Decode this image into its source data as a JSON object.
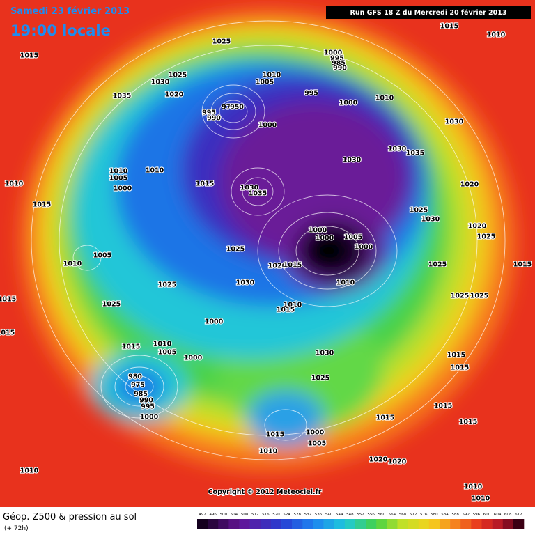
{
  "header": {
    "date": "Samedi 23 février 2013",
    "time": "19:00 locale",
    "run": "Run GFS 18 Z du Mercredi 20 février 2013"
  },
  "map": {
    "isobar_labels": [
      1015,
      1025,
      1015,
      1010,
      1025,
      1030,
      1020,
      1035,
      1000,
      995,
      985,
      990,
      1010,
      1005,
      995,
      1000,
      1010,
      995,
      990,
      975,
      950,
      1000,
      1030,
      1030,
      1035,
      1030,
      1010,
      1005,
      1010,
      1000,
      1010,
      1015,
      1015,
      1030,
      1035,
      1020,
      1025,
      1030,
      1020,
      1025,
      1000,
      1000,
      1005,
      1000,
      1025,
      1020,
      1015,
      1005,
      1010,
      1025,
      1015,
      1010,
      1025,
      1030,
      1025,
      1015,
      1025,
      1025,
      1010,
      1015,
      1000,
      1015,
      1015,
      1010,
      1005,
      1000,
      1030,
      1015,
      1015,
      980,
      975,
      985,
      990,
      995,
      1000,
      1025,
      1015,
      1015,
      1015,
      1015,
      1000,
      1005,
      1010,
      1020,
      1020,
      1010,
      1010,
      1010
    ]
  },
  "copyright": "Copyright © 2012 Meteociel.fr",
  "footer": {
    "title": "Géop. Z500 & pression au sol",
    "lead": "(+ 72h)",
    "scale": [
      492,
      496,
      500,
      504,
      508,
      512,
      516,
      520,
      524,
      528,
      532,
      536,
      540,
      544,
      548,
      552,
      556,
      560,
      564,
      568,
      572,
      576,
      580,
      584,
      588,
      592,
      596,
      600,
      604,
      608,
      612
    ]
  }
}
